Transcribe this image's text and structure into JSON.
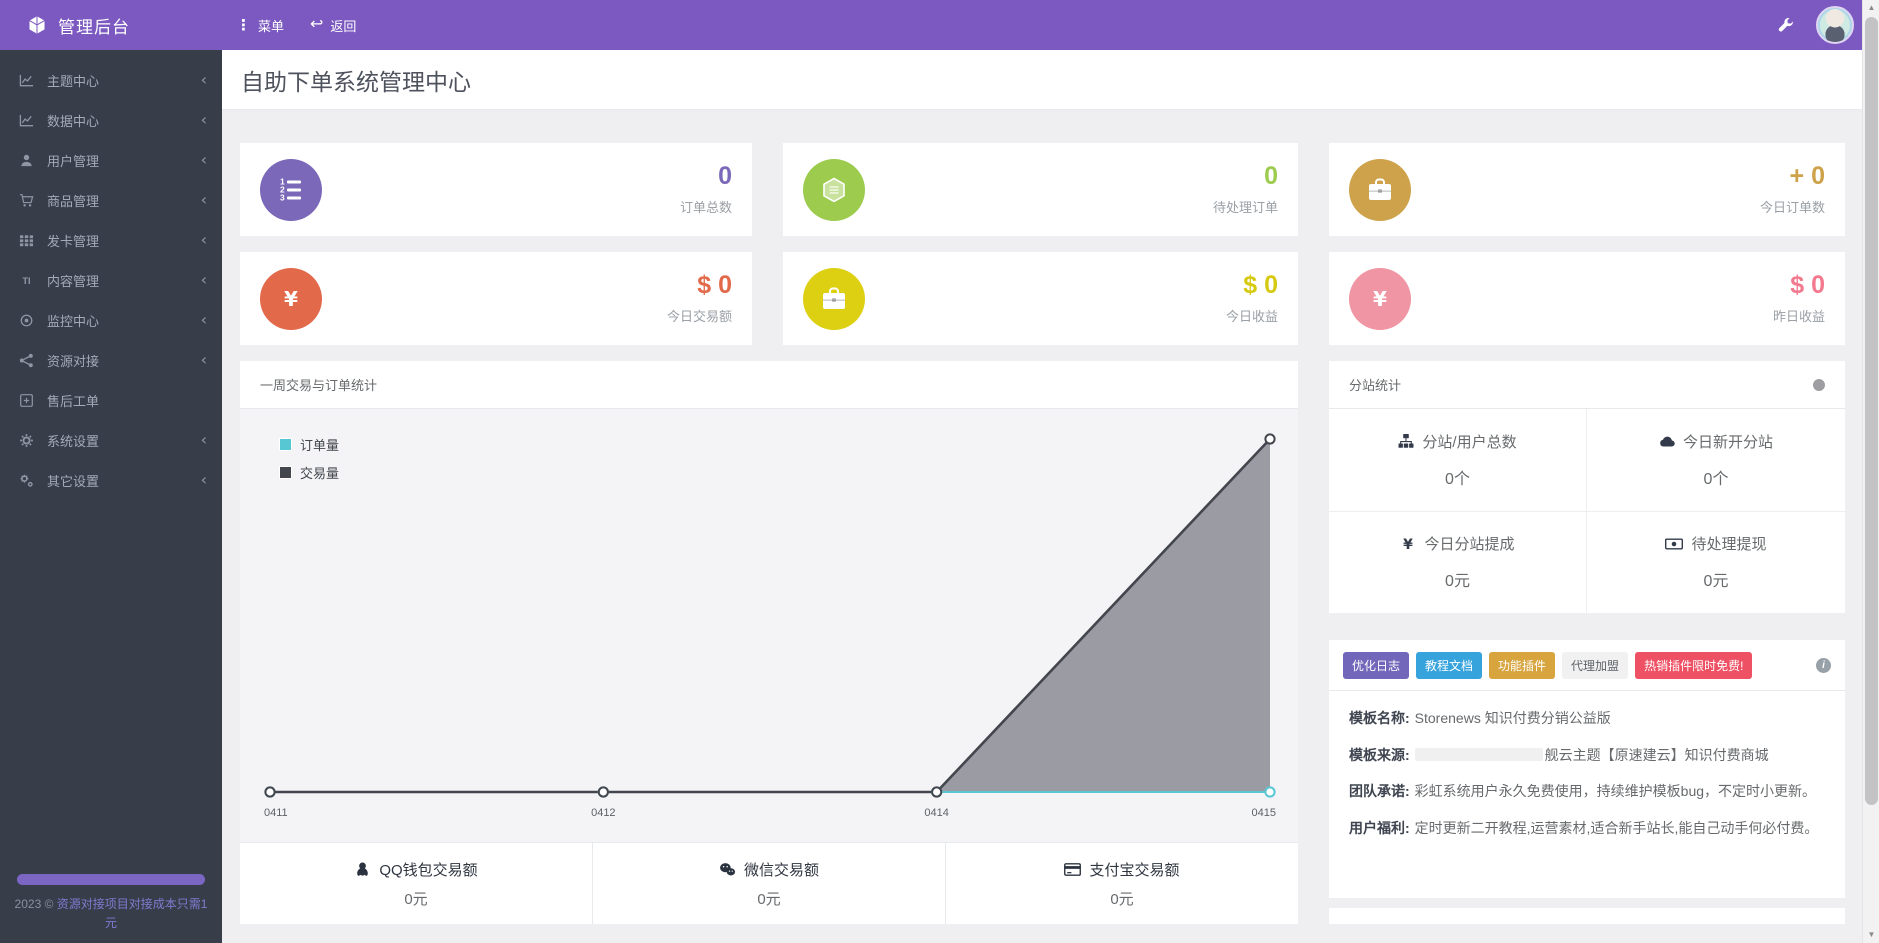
{
  "colors": {
    "topbar_purple": "#7c59c0",
    "sidebar_bg": "#383d4a",
    "content_bg": "#efeff1",
    "card_purple": "#7b68b8",
    "card_green": "#9ccb4d",
    "card_gold": "#cda24a",
    "card_red": "#e2694a",
    "card_yellow": "#ddd013",
    "card_pink": "#f095a3",
    "badge_purple": "#7266ba",
    "badge_blue": "#36a3dd",
    "badge_gold": "#d8a43e",
    "badge_gray": "#f1f1f2",
    "badge_red": "#ee5064",
    "chart_orders_cyan": "#58c7d4",
    "chart_trades_dark": "#43464d",
    "chart_area_gray": "#92929b"
  },
  "topbar": {
    "brand": "管理后台",
    "menu_label": "菜单",
    "back_label": "返回"
  },
  "sidebar": {
    "items": [
      {
        "label": "主题中心",
        "icon": "line-chart-icon",
        "has_submenu": true
      },
      {
        "label": "数据中心",
        "icon": "line-chart-icon",
        "has_submenu": true
      },
      {
        "label": "用户管理",
        "icon": "user-icon",
        "has_submenu": true
      },
      {
        "label": "商品管理",
        "icon": "cart-icon",
        "has_submenu": true
      },
      {
        "label": "发卡管理",
        "icon": "grid-icon",
        "has_submenu": true
      },
      {
        "label": "内容管理",
        "icon": "text-icon",
        "has_submenu": true
      },
      {
        "label": "监控中心",
        "icon": "dot-circle-icon",
        "has_submenu": true
      },
      {
        "label": "资源对接",
        "icon": "share-icon",
        "has_submenu": true
      },
      {
        "label": "售后工单",
        "icon": "plus-square-icon",
        "has_submenu": false
      },
      {
        "label": "系统设置",
        "icon": "gear-icon",
        "has_submenu": true
      },
      {
        "label": "其它设置",
        "icon": "cogs-icon",
        "has_submenu": true
      }
    ],
    "footer": {
      "prefix": "2023 ©",
      "link": "资源对接项目对接成本只需1元"
    }
  },
  "page": {
    "title": "自助下单系统管理中心"
  },
  "stat_cards": [
    {
      "value": "0",
      "label": "订单总数",
      "icon": "ordered-list-icon",
      "color": "#7b68b8"
    },
    {
      "value": "0",
      "label": "待处理订单",
      "icon": "hexagon-icon",
      "color": "#9ccb4d"
    },
    {
      "value": "+ 0",
      "label": "今日订单数",
      "icon": "briefcase-icon",
      "color": "#cda24a"
    },
    {
      "value": "$ 0",
      "label": "今日交易额",
      "icon": "yen-icon",
      "color": "#e2694a"
    },
    {
      "value": "$ 0",
      "label": "今日收益",
      "icon": "briefcase-icon",
      "color": "#ddd013"
    },
    {
      "value": "$ 0",
      "label": "昨日收益",
      "icon": "yen-icon",
      "color": "#f095a3"
    }
  ],
  "chart_panel": {
    "title": "一周交易与订单统计"
  },
  "chart_data": {
    "type": "area",
    "title": "一周交易与订单统计",
    "categories": [
      "0411",
      "0412",
      "0414",
      "0415"
    ],
    "series": [
      {
        "name": "订单量",
        "color": "#58c7d4",
        "values": [
          0,
          0,
          0,
          0
        ]
      },
      {
        "name": "交易量",
        "color": "#43464d",
        "fill": "#92929b",
        "values": [
          0,
          0,
          0,
          1
        ]
      }
    ],
    "y_axis": "hidden",
    "ylim": [
      0,
      1
    ],
    "values_note": "y scale unlabeled; 交易量 rises from 0 at 0414 to its peak at 0415, all other points are zero",
    "legend_position": "top-left",
    "grid": false
  },
  "pay_stats": [
    {
      "icon": "qq-icon",
      "label": "QQ钱包交易额",
      "value": "0元"
    },
    {
      "icon": "wechat-icon",
      "label": "微信交易额",
      "value": "0元"
    },
    {
      "icon": "card-icon",
      "label": "支付宝交易额",
      "value": "0元"
    }
  ],
  "substation": {
    "title": "分站统计",
    "cells": [
      {
        "icon": "sitemap-icon",
        "label": "分站/用户总数",
        "value": "0个"
      },
      {
        "icon": "cloud-icon",
        "label": "今日新开分站",
        "value": "0个"
      },
      {
        "icon": "yen-icon",
        "label": "今日分站提成",
        "value": "0元"
      },
      {
        "icon": "money-icon",
        "label": "待处理提现",
        "value": "0元"
      }
    ]
  },
  "info_panel": {
    "badges": [
      {
        "text": "优化日志",
        "color": "#7266ba"
      },
      {
        "text": "教程文档",
        "color": "#36a3dd"
      },
      {
        "text": "功能插件",
        "color": "#d8a43e"
      },
      {
        "text": "代理加盟",
        "color": "#f1f1f2"
      },
      {
        "text": "热销插件限时免费!",
        "color": "#ee5064"
      }
    ],
    "rows": [
      {
        "label": "模板名称:",
        "text": "Storenews 知识付费分销公益版",
        "redacted": false
      },
      {
        "label": "模板来源:",
        "text": "舰云主题【原速建云】知识付费商城",
        "redacted": true
      },
      {
        "label": "团队承诺:",
        "text": "彩虹系统用户永久免费使用，持续维护模板bug，不定时小更新。",
        "redacted": false
      },
      {
        "label": "用户福利:",
        "text": "定时更新二开教程,运营素材,适合新手站长,能自己动手何必付费。",
        "redacted": false
      }
    ]
  }
}
